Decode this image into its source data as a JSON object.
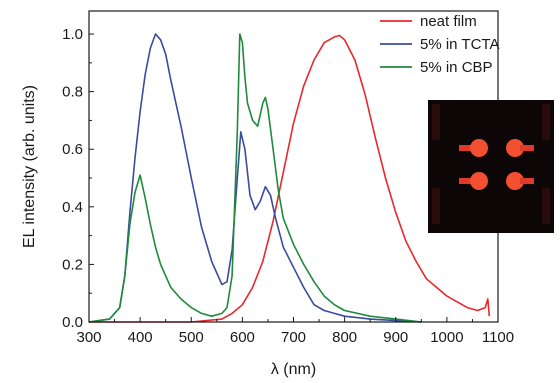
{
  "chart_data": {
    "type": "line",
    "xlabel": "λ (nm)",
    "ylabel": "EL intensity (arb. units)",
    "xlim": [
      300,
      1100
    ],
    "ylim": [
      0.0,
      1.08
    ],
    "x_ticks": [
      300,
      400,
      500,
      600,
      700,
      800,
      900,
      1000,
      1100
    ],
    "x_tick_labels": [
      "300",
      "400",
      "500",
      "600",
      "700",
      "800",
      "900",
      "1000",
      "1100"
    ],
    "y_ticks": [
      0.0,
      0.2,
      0.4,
      0.6,
      0.8,
      1.0
    ],
    "y_tick_labels": [
      "0.0",
      "0.2",
      "0.4",
      "0.6",
      "0.8",
      "1.0"
    ],
    "legend_position": "top-right",
    "inset": "photo of four glowing red devices",
    "series": [
      {
        "name": "neat film",
        "color": "#e8282b",
        "x": [
          300,
          500,
          560,
          580,
          600,
          620,
          640,
          660,
          680,
          700,
          720,
          740,
          760,
          780,
          790,
          800,
          820,
          840,
          860,
          880,
          900,
          920,
          940,
          960,
          980,
          1000,
          1020,
          1040,
          1060,
          1075,
          1080,
          1083
        ],
        "y": [
          0.0,
          0.0,
          0.01,
          0.03,
          0.06,
          0.12,
          0.21,
          0.35,
          0.52,
          0.69,
          0.82,
          0.91,
          0.97,
          0.99,
          0.995,
          0.98,
          0.91,
          0.79,
          0.64,
          0.5,
          0.38,
          0.28,
          0.21,
          0.15,
          0.12,
          0.09,
          0.07,
          0.05,
          0.04,
          0.05,
          0.08,
          0.02
        ]
      },
      {
        "name": "5% in TCTA",
        "color": "#3a4ba0",
        "x": [
          300,
          340,
          360,
          370,
          380,
          390,
          400,
          410,
          420,
          430,
          440,
          450,
          460,
          480,
          500,
          520,
          540,
          560,
          570,
          580,
          590,
          597,
          605,
          615,
          625,
          635,
          645,
          655,
          665,
          680,
          700,
          720,
          740,
          760,
          780,
          800,
          850,
          900,
          950
        ],
        "y": [
          0.0,
          0.01,
          0.05,
          0.16,
          0.38,
          0.57,
          0.73,
          0.86,
          0.95,
          1.0,
          0.98,
          0.93,
          0.84,
          0.68,
          0.5,
          0.33,
          0.21,
          0.13,
          0.14,
          0.25,
          0.5,
          0.66,
          0.6,
          0.44,
          0.39,
          0.42,
          0.47,
          0.44,
          0.36,
          0.26,
          0.19,
          0.12,
          0.06,
          0.04,
          0.03,
          0.02,
          0.01,
          0.005,
          0.0
        ]
      },
      {
        "name": "5% in CBP",
        "color": "#1f8a3a",
        "x": [
          300,
          340,
          360,
          370,
          380,
          390,
          400,
          410,
          420,
          430,
          440,
          460,
          480,
          500,
          520,
          540,
          560,
          570,
          580,
          590,
          595,
          600,
          605,
          610,
          620,
          630,
          640,
          645,
          650,
          660,
          670,
          680,
          700,
          720,
          740,
          760,
          780,
          800,
          850,
          900,
          950
        ],
        "y": [
          0.0,
          0.01,
          0.05,
          0.16,
          0.34,
          0.45,
          0.51,
          0.43,
          0.34,
          0.26,
          0.2,
          0.12,
          0.08,
          0.05,
          0.03,
          0.02,
          0.03,
          0.05,
          0.16,
          0.66,
          1.0,
          0.97,
          0.85,
          0.76,
          0.7,
          0.68,
          0.76,
          0.78,
          0.74,
          0.6,
          0.46,
          0.36,
          0.27,
          0.2,
          0.14,
          0.09,
          0.06,
          0.04,
          0.02,
          0.01,
          0.0
        ]
      }
    ]
  }
}
